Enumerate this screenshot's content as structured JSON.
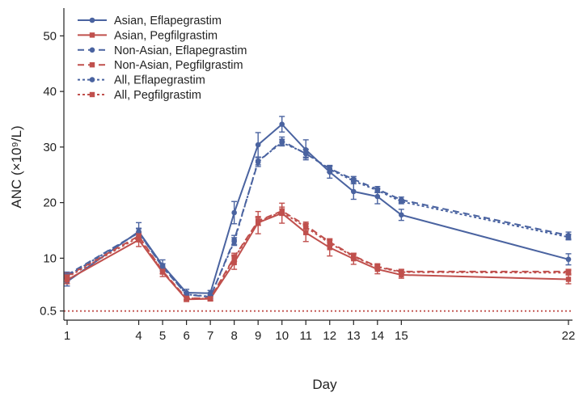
{
  "chart_data": {
    "type": "line",
    "title": "",
    "xlabel": "Day",
    "ylabel": "ANC (×10⁹/L)",
    "x_ticks": [
      1,
      4,
      5,
      6,
      7,
      8,
      9,
      10,
      11,
      12,
      13,
      14,
      15,
      22
    ],
    "y_ticks": [
      0.5,
      10,
      20,
      30,
      40,
      50
    ],
    "xlim": [
      0.9,
      22.2
    ],
    "ylim": [
      -1.0,
      55.0
    ],
    "reference_line": {
      "y": 0.5,
      "color": "#c0504d",
      "style": "dotted"
    },
    "legend_position": "top-left",
    "series": [
      {
        "name": "Asian, Eflapegrastim",
        "color": "#4a63a0",
        "line_style": "solid",
        "marker": "circle",
        "x": [
          1,
          4,
          5,
          6,
          7,
          8,
          9,
          10,
          11,
          12,
          13,
          14,
          15,
          22
        ],
        "y": [
          5.8,
          14.8,
          8.7,
          3.8,
          3.7,
          18.2,
          30.4,
          34.1,
          29.5,
          25.5,
          22.0,
          21.1,
          17.8,
          9.8
        ],
        "err": [
          0.8,
          1.6,
          1.0,
          0.6,
          0.5,
          2.0,
          2.2,
          1.4,
          1.8,
          1.1,
          1.4,
          1.3,
          1.0,
          1.0
        ]
      },
      {
        "name": "Asian, Pegfilgrastim",
        "color": "#c0504d",
        "line_style": "solid",
        "marker": "square",
        "x": [
          1,
          4,
          5,
          6,
          7,
          8,
          9,
          10,
          11,
          12,
          13,
          14,
          15,
          22
        ],
        "y": [
          6.1,
          13.3,
          7.5,
          2.6,
          2.7,
          9.2,
          16.4,
          18.1,
          14.6,
          11.9,
          9.9,
          8.0,
          7.0,
          6.2
        ],
        "err": [
          0.7,
          1.2,
          0.8,
          0.4,
          0.4,
          1.2,
          2.0,
          1.8,
          1.6,
          1.5,
          1.0,
          0.8,
          0.6,
          0.8
        ]
      },
      {
        "name": "Non-Asian, Eflapegrastim",
        "color": "#4a63a0",
        "line_style": "dashed",
        "marker": "circle",
        "x": [
          1,
          4,
          5,
          6,
          7,
          8,
          9,
          10,
          11,
          12,
          13,
          14,
          15,
          22
        ],
        "y": [
          7.0,
          14.6,
          8.4,
          3.5,
          3.0,
          13.3,
          27.3,
          31.1,
          28.8,
          26.1,
          24.2,
          22.4,
          20.5,
          14.1
        ],
        "err": [
          0.5,
          0.8,
          0.6,
          0.3,
          0.3,
          0.8,
          0.8,
          0.7,
          0.8,
          0.6,
          0.5,
          0.5,
          0.5,
          0.6
        ]
      },
      {
        "name": "Non-Asian, Pegfilgrastim",
        "color": "#c0504d",
        "line_style": "dashed",
        "marker": "square",
        "x": [
          1,
          4,
          5,
          6,
          7,
          8,
          9,
          10,
          11,
          12,
          13,
          14,
          15,
          22
        ],
        "y": [
          6.8,
          14.0,
          7.7,
          2.8,
          2.8,
          10.2,
          16.7,
          18.5,
          15.9,
          12.9,
          10.4,
          8.5,
          7.6,
          7.6
        ],
        "err": [
          0.5,
          0.7,
          0.5,
          0.3,
          0.3,
          0.7,
          0.8,
          0.7,
          0.6,
          0.6,
          0.5,
          0.5,
          0.4,
          0.4
        ]
      },
      {
        "name": "All, Eflapegrastim",
        "color": "#4a63a0",
        "line_style": "dotted",
        "marker": "circle",
        "x": [
          1,
          4,
          5,
          6,
          7,
          8,
          9,
          10,
          11,
          12,
          13,
          14,
          15,
          22
        ],
        "y": [
          6.8,
          14.6,
          8.5,
          3.5,
          3.1,
          13.0,
          27.5,
          30.8,
          28.9,
          26.0,
          23.9,
          22.2,
          20.2,
          13.8
        ],
        "err": [
          0.4,
          0.7,
          0.5,
          0.3,
          0.3,
          0.7,
          0.7,
          0.6,
          0.7,
          0.5,
          0.5,
          0.4,
          0.4,
          0.5
        ]
      },
      {
        "name": "All, Pegfilgrastim",
        "color": "#c0504d",
        "line_style": "dotted",
        "marker": "square",
        "x": [
          1,
          4,
          5,
          6,
          7,
          8,
          9,
          10,
          11,
          12,
          13,
          14,
          15,
          22
        ],
        "y": [
          6.6,
          13.8,
          7.6,
          2.8,
          2.7,
          10.0,
          16.6,
          18.3,
          15.6,
          12.7,
          10.3,
          8.4,
          7.5,
          7.4
        ],
        "err": [
          0.4,
          0.6,
          0.4,
          0.3,
          0.3,
          0.6,
          0.7,
          0.6,
          0.6,
          0.5,
          0.4,
          0.4,
          0.4,
          0.4
        ]
      }
    ]
  }
}
